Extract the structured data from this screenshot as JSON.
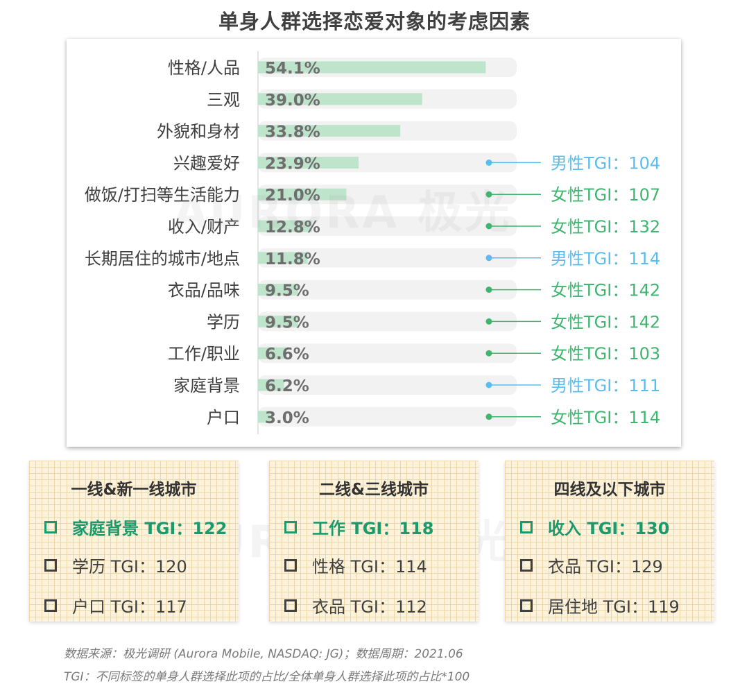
{
  "title": "单身人群选择恋爱对象的考虑因素",
  "watermark": "AURORA 极光",
  "colors": {
    "bar": "#bfe4cc",
    "track": "#f2f2f2",
    "male": "#5bbcf0",
    "female": "#3fb56f",
    "highlight": "#1d9a6c"
  },
  "chart_data": {
    "type": "bar",
    "orientation": "horizontal",
    "title": "单身人群选择恋爱对象的考虑因素",
    "categories": [
      "性格/人品",
      "三观",
      "外貌和身材",
      "兴趣爱好",
      "做饭/打扫等生活能力",
      "收入/财产",
      "长期居住的城市/地点",
      "衣品/品味",
      "学历",
      "工作/职业",
      "家庭背景",
      "户口"
    ],
    "values": [
      54.1,
      39.0,
      33.8,
      23.9,
      21.0,
      12.8,
      11.8,
      9.5,
      9.5,
      6.6,
      6.2,
      3.0
    ],
    "value_labels": [
      "54.1%",
      "39.0%",
      "33.8%",
      "23.9%",
      "21.0%",
      "12.8%",
      "11.8%",
      "9.5%",
      "9.5%",
      "6.6%",
      "6.2%",
      "3.0%"
    ],
    "xlim": [
      0,
      100
    ],
    "tgi_annotations": [
      null,
      null,
      null,
      {
        "gender": "male",
        "text": "男性TGI：104"
      },
      {
        "gender": "female",
        "text": "女性TGI：107"
      },
      {
        "gender": "female",
        "text": "女性TGI：132"
      },
      {
        "gender": "male",
        "text": "男性TGI：114"
      },
      {
        "gender": "female",
        "text": "女性TGI：142"
      },
      {
        "gender": "female",
        "text": "女性TGI：142"
      },
      {
        "gender": "female",
        "text": "女性TGI：103"
      },
      {
        "gender": "male",
        "text": "男性TGI：111"
      },
      {
        "gender": "female",
        "text": "女性TGI：114"
      }
    ]
  },
  "city_tiers": [
    {
      "title": "一线&新一线城市",
      "items": [
        {
          "text": "家庭背景 TGI：122",
          "highlight": true
        },
        {
          "text": "学历 TGI：120",
          "highlight": false
        },
        {
          "text": "户口 TGI：117",
          "highlight": false
        }
      ]
    },
    {
      "title": "二线&三线城市",
      "items": [
        {
          "text": "工作 TGI：118",
          "highlight": true
        },
        {
          "text": "性格 TGI：114",
          "highlight": false
        },
        {
          "text": "衣品 TGI：112",
          "highlight": false
        }
      ]
    },
    {
      "title": "四线及以下城市",
      "items": [
        {
          "text": "收入 TGI：130",
          "highlight": true
        },
        {
          "text": "衣品 TGI：129",
          "highlight": false
        },
        {
          "text": "居住地 TGI：119",
          "highlight": false
        }
      ]
    }
  ],
  "footnotes": {
    "source": "数据来源：极光调研 (Aurora Mobile, NASDAQ: JG)；数据周期：2021.06",
    "tgi_def": "TGI：不同标签的单身人群选择此项的占比/全体单身人群选择此项的占比*100"
  }
}
